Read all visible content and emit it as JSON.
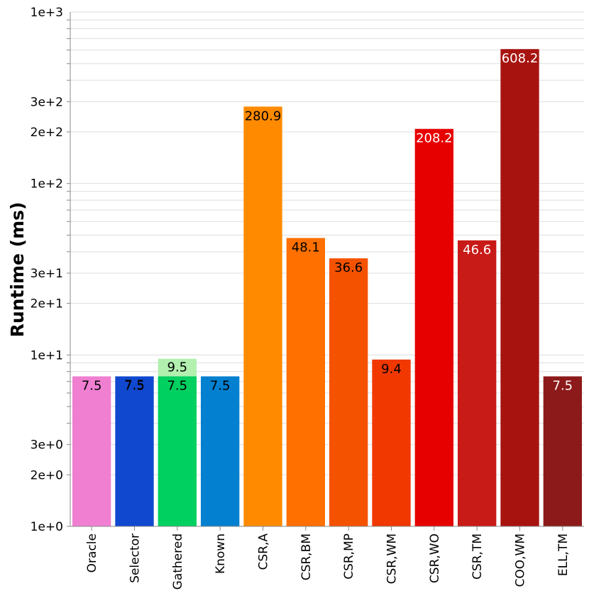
{
  "chart_data": {
    "type": "bar",
    "scale": "log",
    "ylabel": "Runtime (ms)",
    "xlabel": "",
    "title": "",
    "ylim": [
      1,
      1000
    ],
    "grid": true,
    "y_ticks": [
      {
        "value": 1,
        "label": "1e+0"
      },
      {
        "value": 2,
        "label": "2e+0"
      },
      {
        "value": 3,
        "label": "3e+0"
      },
      {
        "value": 10,
        "label": "1e+1"
      },
      {
        "value": 20,
        "label": "2e+1"
      },
      {
        "value": 30,
        "label": "3e+1"
      },
      {
        "value": 100,
        "label": "1e+2"
      },
      {
        "value": 200,
        "label": "2e+2"
      },
      {
        "value": 300,
        "label": "3e+2"
      },
      {
        "value": 1000,
        "label": "1e+3"
      }
    ],
    "categories": [
      "Oracle",
      "Selector",
      "Gathered",
      "Known",
      "CSR,A",
      "CSR,BM",
      "CSR,MP",
      "CSR,WM",
      "CSR,WO",
      "CSR,TM",
      "COO,WM",
      "ELL,TM"
    ],
    "series": [
      {
        "values": [
          7.5,
          7.5,
          7.5,
          7.5,
          280.9,
          48.1,
          36.6,
          9.4,
          208.2,
          46.6,
          608.2,
          7.5
        ],
        "labels": [
          "7.5",
          "7.5",
          "7.5",
          "7.5",
          "280.9",
          "48.1",
          "36.6",
          "9.4",
          "208.2",
          "46.6",
          "608.2",
          "7.5"
        ],
        "colors": [
          "#f07fd2",
          "#1048d0",
          "#00d060",
          "#0380d0",
          "#ff8a00",
          "#ff7000",
          "#f55200",
          "#f03800",
          "#e60000",
          "#c81a16",
          "#a71410",
          "#8d1a1a"
        ],
        "label_colors": [
          "#000000",
          "#000000",
          "#000000",
          "#000000",
          "#000000",
          "#000000",
          "#000000",
          "#000000",
          "#ffffff",
          "#ffffff",
          "#ffffff",
          "#ffffff"
        ]
      }
    ],
    "overlay": [
      {
        "category": "Selector",
        "value": 7.5,
        "label": "7.5",
        "color": "#ffffff",
        "label_color": "#000000"
      },
      {
        "category": "Gathered",
        "value": 9.5,
        "label": "9.5",
        "color": "#b2f0b0",
        "label_color": "#000000"
      }
    ]
  }
}
